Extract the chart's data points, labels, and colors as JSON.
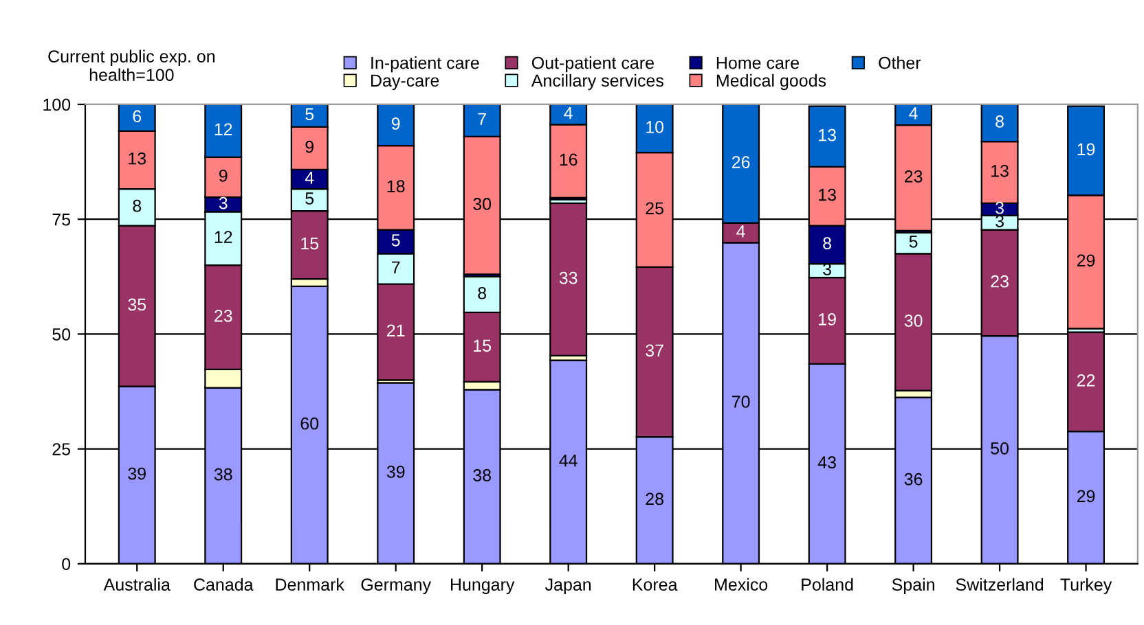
{
  "chart_data": {
    "type": "bar",
    "stacked": true,
    "ylabel": "Current public exp. on\nhealth=100",
    "categories": [
      "Australia",
      "Canada",
      "Denmark",
      "Germany",
      "Hungary",
      "Japan",
      "Korea",
      "Mexico",
      "Poland",
      "Spain",
      "Switzerland",
      "Turkey"
    ],
    "series": [
      {
        "name": "In-patient care",
        "color": "#9999ff",
        "values": [
          38.6,
          38.3,
          60.4,
          39.4,
          37.9,
          44.3,
          27.6,
          69.9,
          43.5,
          36.2,
          49.6,
          28.8
        ],
        "value_labels": [
          "39",
          "38",
          "60",
          "39",
          "38",
          "44",
          "28",
          "70",
          "43",
          "36",
          "50",
          "29"
        ]
      },
      {
        "name": "Day-care",
        "color": "#ffffcc",
        "values": [
          0,
          4.0,
          1.6,
          0.6,
          1.7,
          1.0,
          0,
          0,
          null,
          1.5,
          0,
          null
        ],
        "value_labels": [
          null,
          null,
          null,
          null,
          null,
          null,
          null,
          null,
          null,
          null,
          null,
          null
        ]
      },
      {
        "name": "Out-patient care",
        "color": "#993366",
        "values": [
          35.0,
          22.7,
          14.8,
          20.9,
          15.1,
          33.2,
          37.0,
          4.3,
          18.8,
          29.8,
          23.1,
          21.6
        ],
        "value_labels": [
          "35",
          "23",
          "15",
          "21",
          "15",
          "33",
          "37",
          "4",
          "19",
          "30",
          "23",
          "22"
        ]
      },
      {
        "name": "Ancillary services",
        "color": "#ccffff",
        "values": [
          8.0,
          11.6,
          4.8,
          6.6,
          7.8,
          0.8,
          0,
          0,
          3.0,
          4.6,
          3.1,
          0.8
        ],
        "value_labels": [
          "8",
          "12",
          "5",
          "7",
          "8",
          null,
          null,
          null,
          "3",
          "5",
          "3",
          null
        ]
      },
      {
        "name": "Home care",
        "color": "#000080",
        "values": [
          0,
          3.2,
          4.2,
          5.2,
          0.5,
          0.4,
          0,
          0,
          8.3,
          0.4,
          2.7,
          0
        ],
        "value_labels": [
          null,
          "3",
          "4",
          "5",
          null,
          null,
          null,
          null,
          "8",
          null,
          "3",
          null
        ]
      },
      {
        "name": "Medical goods",
        "color": "#ff8080",
        "values": [
          12.6,
          8.7,
          9.3,
          18.3,
          30.0,
          15.9,
          24.9,
          0,
          12.8,
          23.0,
          13.4,
          29.0
        ],
        "value_labels": [
          "13",
          "9",
          "9",
          "18",
          "30",
          "16",
          "25",
          null,
          "13",
          "23",
          "13",
          "29"
        ]
      },
      {
        "name": "Other",
        "color": "#0066cc",
        "values": [
          5.8,
          11.5,
          4.9,
          9.0,
          7.0,
          4.4,
          10.5,
          25.8,
          13.2,
          4.5,
          8.1,
          19.4
        ],
        "value_labels": [
          "6",
          "12",
          "5",
          "9",
          "7",
          "4",
          "10",
          "26",
          "13",
          "4",
          "8",
          "19"
        ]
      }
    ],
    "ylim": [
      0,
      100
    ],
    "yticks": [
      0,
      25,
      50,
      75,
      100
    ],
    "grid": "y",
    "legend": "top"
  }
}
